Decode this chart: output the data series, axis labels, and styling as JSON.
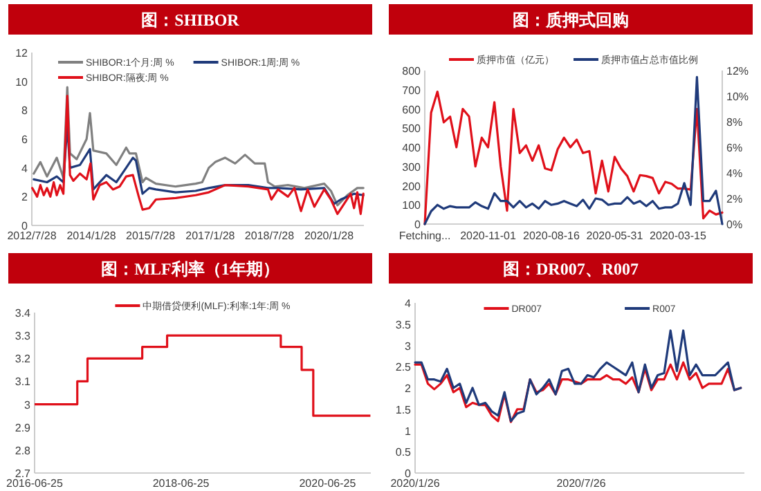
{
  "chart_data": [
    {
      "type": "line",
      "title": "图：SHIBOR",
      "legend": "top",
      "xlim": [
        "2012-07-28",
        "2020-12-15"
      ],
      "xticks": [
        {
          "value": "2012-07-28",
          "label": "2012/7/28"
        },
        {
          "value": "2014-01-28",
          "label": "2014/1/28"
        },
        {
          "value": "2015-07-28",
          "label": "2015/7/28"
        },
        {
          "value": "2017-01-28",
          "label": "2017/1/28"
        },
        {
          "value": "2018-07-28",
          "label": "2018/7/28"
        },
        {
          "value": "2020-01-28",
          "label": "2020/1/28"
        }
      ],
      "ylim": [
        0,
        12
      ],
      "yticks": [
        0,
        2,
        4,
        6,
        8,
        10,
        12
      ],
      "series": [
        {
          "name": "SHIBOR:1个月:周 %",
          "color": "#808080",
          "x": [
            "2012-08-15",
            "2012-10-15",
            "2012-12-15",
            "2013-03-15",
            "2013-05-15",
            "2013-06-20",
            "2013-07-15",
            "2013-09-15",
            "2013-12-15",
            "2014-01-15",
            "2014-02-15",
            "2014-06-15",
            "2014-09-15",
            "2014-12-15",
            "2015-01-15",
            "2015-03-15",
            "2015-05-15",
            "2015-06-15",
            "2015-09-15",
            "2016-03-15",
            "2016-09-15",
            "2016-11-15",
            "2017-01-15",
            "2017-03-15",
            "2017-06-15",
            "2017-09-15",
            "2017-12-15",
            "2018-03-15",
            "2018-06-15",
            "2018-07-15",
            "2018-09-15",
            "2019-01-15",
            "2019-06-15",
            "2019-12-15",
            "2020-02-15",
            "2020-04-15",
            "2020-07-15",
            "2020-10-15",
            "2020-12-10"
          ],
          "values": [
            3.6,
            4.4,
            3.4,
            4.7,
            3.3,
            9.6,
            5.0,
            4.6,
            6.0,
            7.8,
            5.2,
            5.0,
            4.2,
            5.4,
            5.0,
            5.0,
            3.0,
            3.3,
            2.9,
            2.7,
            2.9,
            3.0,
            4.0,
            4.4,
            4.7,
            4.3,
            4.9,
            4.3,
            4.3,
            3.0,
            2.7,
            2.8,
            2.6,
            2.9,
            2.4,
            1.4,
            2.1,
            2.6,
            2.6
          ]
        },
        {
          "name": "SHIBOR:1周:周 %",
          "color": "#1f3a7a",
          "x": [
            "2012-08-15",
            "2012-12-15",
            "2013-03-15",
            "2013-05-15",
            "2013-06-20",
            "2013-07-15",
            "2013-10-15",
            "2014-01-15",
            "2014-02-15",
            "2014-06-15",
            "2014-09-15",
            "2014-12-15",
            "2015-02-15",
            "2015-03-15",
            "2015-05-15",
            "2015-07-15",
            "2015-09-15",
            "2016-03-15",
            "2016-09-15",
            "2017-01-15",
            "2017-06-15",
            "2018-01-15",
            "2018-07-15",
            "2018-10-15",
            "2019-05-15",
            "2019-12-15",
            "2020-03-15",
            "2020-05-15",
            "2020-09-15",
            "2020-12-10"
          ],
          "values": [
            3.2,
            3.0,
            3.4,
            3.0,
            7.0,
            4.0,
            4.2,
            5.3,
            2.5,
            3.5,
            3.0,
            4.0,
            4.7,
            4.5,
            2.2,
            2.6,
            2.5,
            2.3,
            2.4,
            2.6,
            2.8,
            2.8,
            2.6,
            2.6,
            2.5,
            2.6,
            1.5,
            1.8,
            2.2,
            2.1
          ]
        },
        {
          "name": "SHIBOR:隔夜:周 %",
          "color": "#e0101a",
          "x": [
            "2012-08-01",
            "2012-09-15",
            "2012-10-15",
            "2012-11-15",
            "2012-12-15",
            "2013-01-15",
            "2013-02-15",
            "2013-03-15",
            "2013-04-15",
            "2013-05-15",
            "2013-06-20",
            "2013-07-15",
            "2013-08-15",
            "2013-10-15",
            "2013-12-15",
            "2014-01-20",
            "2014-02-15",
            "2014-04-15",
            "2014-06-15",
            "2014-08-15",
            "2014-10-15",
            "2014-12-15",
            "2015-02-15",
            "2015-04-10",
            "2015-05-15",
            "2015-07-15",
            "2015-09-15",
            "2016-03-15",
            "2016-09-15",
            "2017-01-15",
            "2017-06-15",
            "2018-01-15",
            "2018-07-15",
            "2018-08-15",
            "2018-10-15",
            "2019-01-15",
            "2019-03-15",
            "2019-05-15",
            "2019-07-15",
            "2019-09-15",
            "2019-12-15",
            "2020-02-15",
            "2020-04-15",
            "2020-06-15",
            "2020-08-15",
            "2020-09-15",
            "2020-10-15",
            "2020-11-15",
            "2020-12-10"
          ],
          "values": [
            2.6,
            2.0,
            2.8,
            2.1,
            2.6,
            2.0,
            3.0,
            2.1,
            2.8,
            2.2,
            9.0,
            3.5,
            3.1,
            3.6,
            3.2,
            4.3,
            1.8,
            2.8,
            3.0,
            2.5,
            2.7,
            3.4,
            3.5,
            2.0,
            1.1,
            1.2,
            1.8,
            1.9,
            2.1,
            2.3,
            2.8,
            2.7,
            2.5,
            1.8,
            2.5,
            2.0,
            2.6,
            1.0,
            2.5,
            1.3,
            2.5,
            1.8,
            0.8,
            1.5,
            2.2,
            1.2,
            2.3,
            0.8,
            2.2
          ]
        }
      ]
    },
    {
      "type": "line",
      "title": "图：质押式回购",
      "legend": "top",
      "categories": [
        "Fetching...",
        null,
        null,
        null,
        null,
        null,
        null,
        null,
        null,
        null,
        "2020-11-01",
        null,
        null,
        null,
        null,
        null,
        null,
        null,
        null,
        null,
        "2020-08-16",
        null,
        null,
        null,
        null,
        null,
        null,
        null,
        null,
        null,
        "2020-05-31",
        null,
        null,
        null,
        null,
        null,
        null,
        null,
        null,
        null,
        "2020-03-15",
        null,
        null,
        null,
        null,
        null,
        null,
        null
      ],
      "ylim": [
        0,
        800
      ],
      "yticks": [
        0,
        100,
        200,
        300,
        400,
        500,
        600,
        700,
        800
      ],
      "y2lim": [
        0,
        12
      ],
      "y2ticks": [
        {
          "value": 0,
          "label": "0%"
        },
        {
          "value": 2,
          "label": "2%"
        },
        {
          "value": 4,
          "label": "4%"
        },
        {
          "value": 6,
          "label": "6%"
        },
        {
          "value": 8,
          "label": "8%"
        },
        {
          "value": 10,
          "label": "10%"
        },
        {
          "value": 12,
          "label": "12%"
        }
      ],
      "series": [
        {
          "name": "质押市值（亿元）",
          "color": "#e0101a",
          "values": [
            0,
            580,
            690,
            530,
            560,
            400,
            600,
            560,
            300,
            450,
            400,
            635,
            300,
            70,
            600,
            370,
            410,
            330,
            410,
            290,
            280,
            390,
            450,
            400,
            440,
            370,
            380,
            160,
            330,
            170,
            350,
            290,
            250,
            170,
            255,
            250,
            240,
            160,
            220,
            210,
            185,
            185,
            180,
            600,
            30,
            70,
            50,
            60
          ]
        },
        {
          "name": "质押市值占总市值比例",
          "color": "#1f3a7a",
          "axis": "y2",
          "values": [
            0,
            1.0,
            1.5,
            1.2,
            1.4,
            1.3,
            1.3,
            1.3,
            1.7,
            1.4,
            1.2,
            2.4,
            1.8,
            1.8,
            1.3,
            1.8,
            1.3,
            1.6,
            1.2,
            1.8,
            1.5,
            1.6,
            1.8,
            1.6,
            1.4,
            1.9,
            1.2,
            2.0,
            1.9,
            1.5,
            1.6,
            1.6,
            2.1,
            1.6,
            1.8,
            1.4,
            1.8,
            1.2,
            1.3,
            1.3,
            1.6,
            3.2,
            1.5,
            11.5,
            1.8,
            1.8,
            2.6,
            0
          ]
        }
      ]
    },
    {
      "type": "step",
      "title": "图：MLF利率（1年期）",
      "legend": "top",
      "xlim": [
        "2016-06-25",
        "2021-01-27"
      ],
      "xticks": [
        "2016-06-25",
        "2018-06-25",
        "2020-06-25"
      ],
      "ylim": [
        2.7,
        3.4
      ],
      "yticks": [
        2.7,
        2.8,
        2.9,
        3,
        3.1,
        3.2,
        3.3,
        3.4
      ],
      "series": [
        {
          "name": "中期借贷便利(MLF):利率:1年:周 %",
          "color": "#e0101a",
          "x": [
            "2016-06-25",
            "2017-01-24",
            "2017-03-16",
            "2017-12-14",
            "2018-04-17",
            "2019-11-05",
            "2020-02-17",
            "2020-04-15",
            "2021-01-25"
          ],
          "values": [
            3.0,
            3.1,
            3.2,
            3.25,
            3.3,
            3.25,
            3.15,
            2.95,
            2.95
          ]
        }
      ]
    },
    {
      "type": "line",
      "title": "图：DR007、R007",
      "legend": "top",
      "x": [
        "2020-01-26",
        "2020-02-02",
        "2020-02-09",
        "2020-02-16",
        "2020-02-23",
        "2020-03-01",
        "2020-03-08",
        "2020-03-15",
        "2020-03-22",
        "2020-03-29",
        "2020-04-05",
        "2020-04-12",
        "2020-04-19",
        "2020-04-26",
        "2020-05-03",
        "2020-05-10",
        "2020-05-17",
        "2020-05-24",
        "2020-05-31",
        "2020-06-07",
        "2020-06-14",
        "2020-06-21",
        "2020-06-28",
        "2020-07-05",
        "2020-07-12",
        "2020-07-19",
        "2020-07-26",
        "2020-08-02",
        "2020-08-09",
        "2020-08-16",
        "2020-08-23",
        "2020-08-30",
        "2020-09-06",
        "2020-09-13",
        "2020-09-20",
        "2020-09-27",
        "2020-10-04",
        "2020-10-11",
        "2020-10-18",
        "2020-10-25",
        "2020-11-01",
        "2020-11-08",
        "2020-11-15",
        "2020-11-22",
        "2020-11-29",
        "2020-12-06",
        "2020-12-13",
        "2020-12-20",
        "2020-12-27",
        "2021-01-03",
        "2021-01-10",
        "2021-01-17"
      ],
      "xlim": [
        "2020-01-26",
        "2021-01-21"
      ],
      "xticks": [
        {
          "value": "2020-01-26",
          "label": "2020/1/26"
        },
        {
          "value": "2020-07-26",
          "label": "2020/7/26"
        }
      ],
      "ylim": [
        0,
        4
      ],
      "yticks": [
        0,
        0.5,
        1,
        1.5,
        2,
        2.5,
        3,
        3.5,
        4
      ],
      "series": [
        {
          "name": "DR007",
          "color": "#e0101a",
          "values": [
            2.55,
            2.55,
            2.1,
            1.97,
            2.1,
            2.3,
            1.9,
            2.0,
            1.55,
            1.65,
            1.6,
            1.6,
            1.35,
            1.22,
            1.85,
            1.2,
            1.5,
            1.5,
            2.2,
            1.9,
            1.95,
            2.1,
            1.85,
            2.2,
            2.2,
            2.15,
            2.1,
            2.2,
            2.2,
            2.2,
            2.3,
            2.2,
            2.2,
            2.1,
            2.25,
            1.9,
            2.45,
            1.95,
            2.2,
            2.2,
            2.55,
            2.2,
            2.6,
            2.2,
            2.35,
            2.0,
            2.1,
            2.1,
            2.1,
            2.45,
            1.95,
            2.0
          ]
        },
        {
          "name": "R007",
          "color": "#1f3a7a",
          "values": [
            2.6,
            2.6,
            2.2,
            2.2,
            2.15,
            2.45,
            2.0,
            2.1,
            1.65,
            2.0,
            1.6,
            1.65,
            1.45,
            1.35,
            1.9,
            1.22,
            1.4,
            1.45,
            2.2,
            1.85,
            2.0,
            2.2,
            1.85,
            2.4,
            2.45,
            2.1,
            2.1,
            2.3,
            2.25,
            2.45,
            2.6,
            2.5,
            2.4,
            2.3,
            2.6,
            1.9,
            2.55,
            2.0,
            2.3,
            2.35,
            3.35,
            2.4,
            3.35,
            2.3,
            2.55,
            2.3,
            2.3,
            2.3,
            2.45,
            2.6,
            1.95,
            2.0
          ]
        }
      ]
    }
  ]
}
